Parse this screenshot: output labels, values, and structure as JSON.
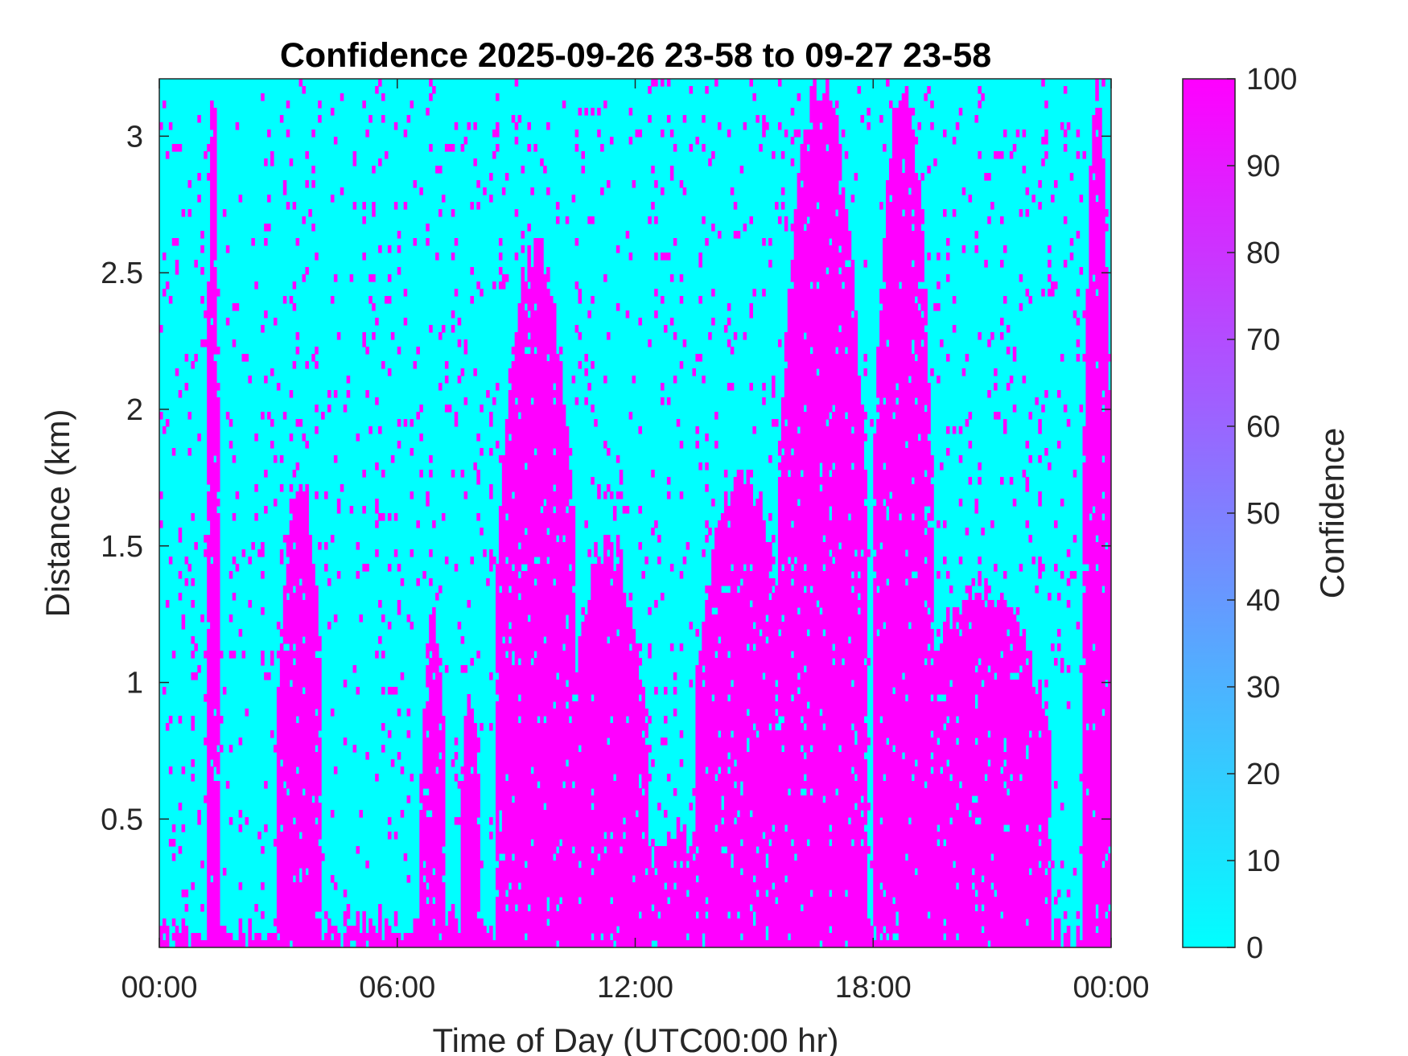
{
  "chart_data": {
    "type": "heatmap",
    "title": "Confidence 2025-09-26 23-58 to 09-27 23-58",
    "xlabel": "Time of Day (UTC00:00 hr)",
    "ylabel": "Distance (km)",
    "x_ticks": [
      "00:00",
      "06:00",
      "12:00",
      "18:00",
      "00:00"
    ],
    "x_tick_hours": [
      0,
      6,
      12,
      18,
      24
    ],
    "xlim_hours": [
      0,
      24
    ],
    "y_ticks": [
      "0.5",
      "1",
      "1.5",
      "2",
      "2.5",
      "3"
    ],
    "y_tick_values": [
      0.5,
      1,
      1.5,
      2,
      2.5,
      3
    ],
    "ylim": [
      0.03,
      3.21
    ],
    "colorbar": {
      "label": "Confidence",
      "ticks": [
        "0",
        "10",
        "20",
        "30",
        "40",
        "50",
        "60",
        "70",
        "80",
        "90",
        "100"
      ],
      "range": [
        0,
        100
      ],
      "color_low": "#00ffff",
      "color_high": "#ff00ff"
    },
    "grid": false,
    "value_scale": "binary: 0 = low confidence, 100 = high confidence",
    "high_confidence_regions_hours_km": [
      {
        "t": [
          0,
          24
        ],
        "top_km": 0.12
      },
      {
        "t": [
          1.2,
          1.5
        ],
        "top_km": 3.21
      },
      {
        "t": [
          3.0,
          4.1
        ],
        "top_km": 1.75
      },
      {
        "t": [
          6.6,
          7.2
        ],
        "top_km": 1.25
      },
      {
        "t": [
          7.6,
          8.1
        ],
        "top_km": 0.95
      },
      {
        "t": [
          8.5,
          10.5
        ],
        "top_km": 2.6
      },
      {
        "t": [
          10.3,
          12.3
        ],
        "top_km": 1.5
      },
      {
        "t": [
          12.0,
          14.0
        ],
        "top_km": 0.45
      },
      {
        "t": [
          13.5,
          15.9
        ],
        "top_km": 1.75
      },
      {
        "t": [
          15.6,
          17.8
        ],
        "top_km": 3.21
      },
      {
        "t": [
          18.0,
          19.5
        ],
        "top_km": 3.21
      },
      {
        "t": [
          19.0,
          22.5
        ],
        "top_km": 1.35
      },
      {
        "t": [
          23.3,
          24.0
        ],
        "top_km": 3.21
      }
    ]
  }
}
